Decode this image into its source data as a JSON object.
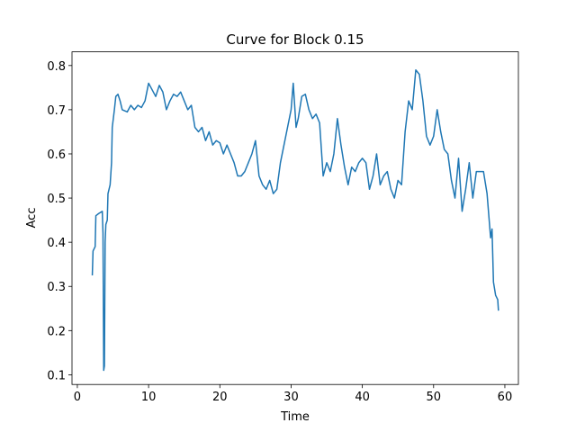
{
  "chart_data": {
    "type": "line",
    "title": "Curve for Block 0.15",
    "x_label": "Time",
    "y_label": "Acc",
    "color": "#1f77b4",
    "x": [
      2.1,
      2.2,
      2.5,
      2.6,
      3.0,
      3.5,
      3.6,
      3.7,
      3.8,
      3.9,
      4.0,
      4.2,
      4.3,
      4.6,
      4.8,
      4.9,
      5.2,
      5.4,
      5.7,
      6.0,
      6.3,
      7,
      7.5,
      8,
      8.5,
      9,
      9.5,
      10,
      10.5,
      11,
      11.5,
      12,
      12.5,
      13,
      13.5,
      14,
      14.5,
      15,
      15.5,
      16,
      16.5,
      17,
      17.5,
      18,
      18.5,
      19,
      19.5,
      20,
      20.5,
      21,
      21.5,
      22,
      22.5,
      23,
      23.5,
      24,
      24.5,
      25,
      25.5,
      26,
      26.5,
      27,
      27.5,
      28,
      28.5,
      29,
      29.5,
      30,
      30.3,
      30.7,
      31,
      31.5,
      32,
      32.5,
      33,
      33.5,
      34,
      34.5,
      35,
      35.5,
      36,
      36.5,
      37,
      37.5,
      38,
      38.5,
      39,
      39.5,
      40,
      40.5,
      41,
      41.5,
      42,
      42.5,
      43,
      43.5,
      44,
      44.5,
      45,
      45.5,
      46,
      46.5,
      47,
      47.5,
      48,
      48.5,
      49,
      49.5,
      50,
      50.5,
      51,
      51.5,
      52,
      52.5,
      53,
      53.5,
      54,
      54.5,
      55,
      55.5,
      56,
      56.5,
      57,
      57.5,
      58,
      58.2,
      58.4,
      58.7,
      59,
      59.1
    ],
    "values": [
      0.325,
      0.38,
      0.39,
      0.46,
      0.465,
      0.47,
      0.42,
      0.11,
      0.12,
      0.4,
      0.44,
      0.45,
      0.51,
      0.53,
      0.58,
      0.66,
      0.7,
      0.73,
      0.735,
      0.72,
      0.7,
      0.695,
      0.71,
      0.7,
      0.71,
      0.705,
      0.72,
      0.76,
      0.745,
      0.73,
      0.755,
      0.74,
      0.7,
      0.72,
      0.735,
      0.73,
      0.74,
      0.72,
      0.7,
      0.71,
      0.66,
      0.65,
      0.66,
      0.63,
      0.65,
      0.62,
      0.63,
      0.625,
      0.6,
      0.62,
      0.6,
      0.58,
      0.55,
      0.55,
      0.56,
      0.58,
      0.6,
      0.63,
      0.55,
      0.53,
      0.52,
      0.54,
      0.51,
      0.52,
      0.58,
      0.62,
      0.66,
      0.7,
      0.76,
      0.66,
      0.68,
      0.73,
      0.735,
      0.7,
      0.68,
      0.69,
      0.67,
      0.55,
      0.58,
      0.56,
      0.6,
      0.68,
      0.62,
      0.57,
      0.53,
      0.57,
      0.56,
      0.58,
      0.59,
      0.58,
      0.52,
      0.55,
      0.6,
      0.53,
      0.55,
      0.56,
      0.52,
      0.5,
      0.54,
      0.53,
      0.65,
      0.72,
      0.7,
      0.79,
      0.78,
      0.72,
      0.64,
      0.62,
      0.64,
      0.7,
      0.65,
      0.61,
      0.6,
      0.54,
      0.5,
      0.59,
      0.47,
      0.52,
      0.58,
      0.5,
      0.56,
      0.56,
      0.56,
      0.51,
      0.41,
      0.43,
      0.31,
      0.28,
      0.27,
      0.245
    ],
    "xlim": [
      -0.75,
      61.9
    ],
    "ylim": [
      0.078,
      0.831
    ],
    "xticks": [
      0,
      10,
      20,
      30,
      40,
      50,
      60
    ],
    "yticks": [
      0.1,
      0.2,
      0.3,
      0.4,
      0.5,
      0.6,
      0.7,
      0.8
    ]
  }
}
